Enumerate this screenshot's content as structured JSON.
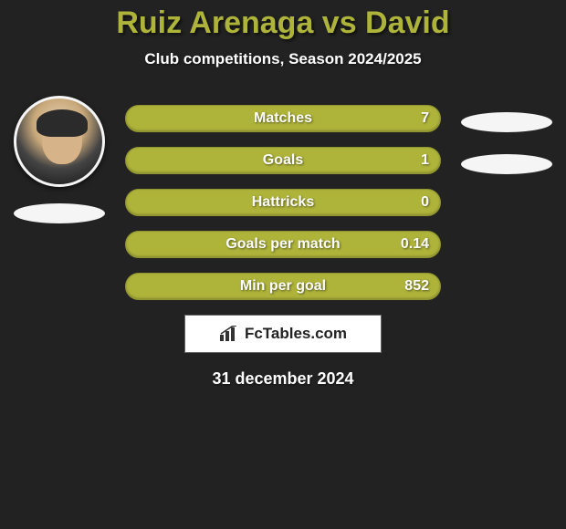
{
  "title": {
    "text": "Ruiz Arenaga vs David",
    "color": "#aeb33a",
    "fontsize": 34
  },
  "subtitle": {
    "text": "Club competitions, Season 2024/2025",
    "color": "#ffffff",
    "fontsize": 17
  },
  "colors": {
    "background": "#222222",
    "bar": "#aeb33a",
    "bar_border": "#919631",
    "tag": "#f5f5f5"
  },
  "players": {
    "left_avatar": true,
    "right_avatar": false
  },
  "stats": [
    {
      "label": "Matches",
      "value": "7",
      "right_tag": true
    },
    {
      "label": "Goals",
      "value": "1",
      "right_tag": true
    },
    {
      "label": "Hattricks",
      "value": "0",
      "right_tag": false
    },
    {
      "label": "Goals per match",
      "value": "0.14",
      "right_tag": false
    },
    {
      "label": "Min per goal",
      "value": "852",
      "right_tag": false
    }
  ],
  "branding": {
    "text": "FcTables.com"
  },
  "date": "31 december 2024"
}
